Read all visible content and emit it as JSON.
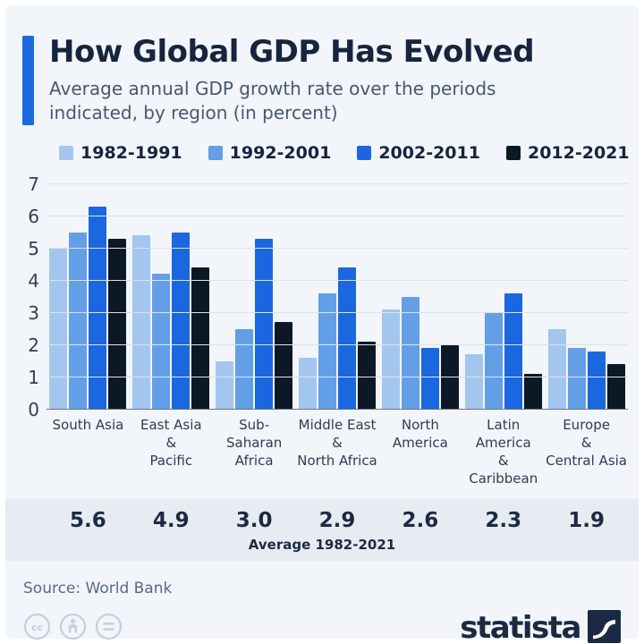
{
  "header": {
    "title": "How Global GDP Has Evolved",
    "subtitle": "Average annual GDP growth rate over the periods indicated, by region (in percent)",
    "accent_color": "#1a6be0"
  },
  "chart_data": {
    "type": "bar",
    "title": "How Global GDP Has Evolved",
    "ylabel": "",
    "xlabel": "",
    "ylim": [
      0,
      7
    ],
    "yticks": [
      0,
      1,
      2,
      3,
      4,
      5,
      6,
      7
    ],
    "grid": true,
    "legend_position": "top",
    "categories": [
      "South Asia",
      "East Asia & Pacific",
      "Sub-Saharan Africa",
      "Middle East & North Africa",
      "North America",
      "Latin America & Caribbean",
      "Europe & Central Asia"
    ],
    "category_labels": [
      "South Asia",
      "East Asia\n&\nPacific",
      "Sub-Saharan\nAfrica",
      "Middle East\n&\nNorth Africa",
      "North\nAmerica",
      "Latin America\n&\nCaribbean",
      "Europe\n&\nCentral Asia"
    ],
    "series": [
      {
        "name": "1982-1991",
        "color": "#a3c6ef",
        "values": [
          5.0,
          5.4,
          1.5,
          1.6,
          3.1,
          1.7,
          2.5
        ]
      },
      {
        "name": "1992-2001",
        "color": "#639fe7",
        "values": [
          5.5,
          4.2,
          2.5,
          3.6,
          3.5,
          3.0,
          1.9
        ]
      },
      {
        "name": "2002-2011",
        "color": "#1a67e0",
        "values": [
          6.3,
          5.5,
          5.3,
          4.4,
          1.9,
          3.6,
          1.8
        ]
      },
      {
        "name": "2012-2021",
        "color": "#0d1826",
        "values": [
          5.3,
          4.4,
          2.7,
          2.1,
          2.0,
          1.1,
          1.4
        ]
      }
    ],
    "averages": {
      "label": "Average 1982-2021",
      "values": [
        "5.6",
        "4.9",
        "3.0",
        "2.9",
        "2.6",
        "2.3",
        "1.9"
      ]
    }
  },
  "footer": {
    "source": "Source: World Bank",
    "brand": "statista",
    "brand_color": "#1b2a44",
    "cc_icons": [
      "cc-icon",
      "attribution-icon",
      "equal-icon"
    ]
  }
}
